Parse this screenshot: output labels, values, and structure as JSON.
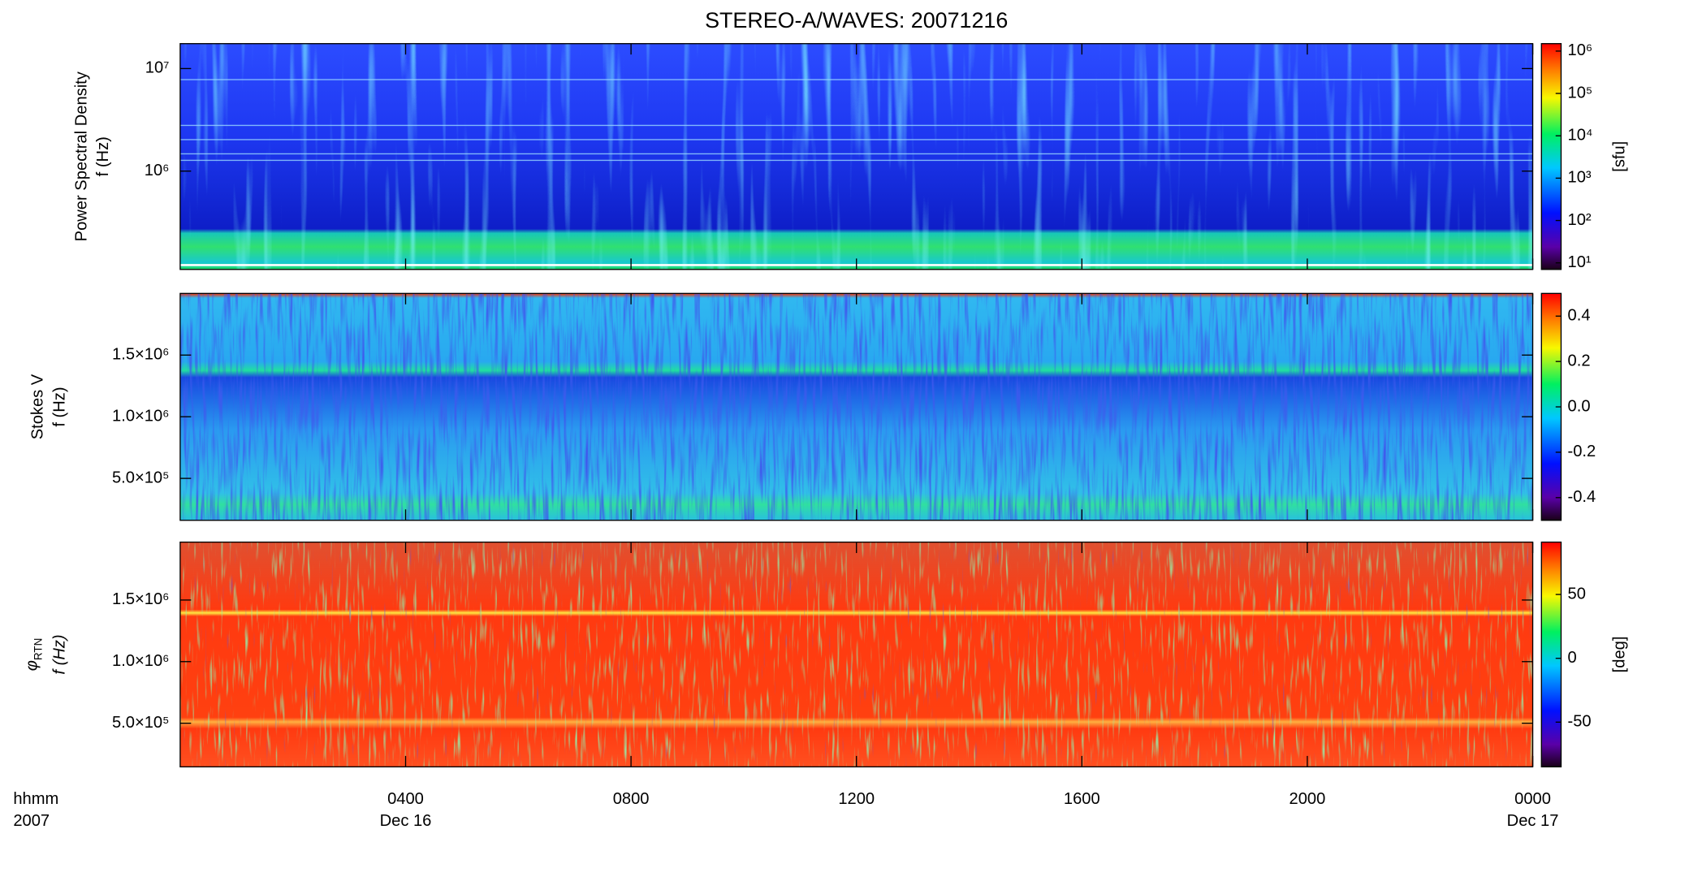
{
  "chart_data": [
    {
      "type": "spectrogram",
      "title": "STEREO-A/WAVES: 20071216",
      "ylabel": [
        "Power Spectral Density",
        "f (Hz)"
      ],
      "ylog": true,
      "ylim": [
        110000,
        17500000
      ],
      "yticks": [
        {
          "value": 1000000,
          "label": "10⁶"
        },
        {
          "value": 10000000,
          "label": "10⁷"
        }
      ],
      "clog": true,
      "clim": [
        7,
        1500000
      ],
      "cticks": [
        {
          "value": 10,
          "label": "10¹"
        },
        {
          "value": 100,
          "label": "10²"
        },
        {
          "value": 1000,
          "label": "10³"
        },
        {
          "value": 10000,
          "label": "10⁴"
        },
        {
          "value": 100000,
          "label": "10⁵"
        },
        {
          "value": 1000000,
          "label": "10⁶"
        }
      ],
      "clabel": "[sfu]"
    },
    {
      "type": "spectrogram",
      "ylabel": [
        "Stokes V",
        "f (Hz)"
      ],
      "ylog": false,
      "ylim": [
        160000,
        2000000
      ],
      "yticks": [
        {
          "value": 500000,
          "label": "5.0×10⁵"
        },
        {
          "value": 1000000,
          "label": "1.0×10⁶"
        },
        {
          "value": 1500000,
          "label": "1.5×10⁶"
        }
      ],
      "clog": false,
      "clim": [
        -0.5,
        0.5
      ],
      "cticks": [
        -0.4,
        -0.2,
        {
          "value": 0,
          "label": "0.0"
        },
        0.2,
        0.4
      ]
    },
    {
      "type": "spectrogram",
      "ylabel_symbol": "φ",
      "ylabel_subscript": "RTN",
      "ylabel": [
        "f (Hz)"
      ],
      "ylog": false,
      "ylim": [
        146000,
        1970000
      ],
      "yticks": [
        {
          "value": 500000,
          "label": "5.0×10⁵"
        },
        {
          "value": 1000000,
          "label": "1.0×10⁶"
        },
        {
          "value": 1500000,
          "label": "1.5×10⁶"
        }
      ],
      "clog": false,
      "clim": [
        -85,
        91
      ],
      "cticks": [
        -50,
        0,
        50
      ],
      "clabel": "[deg]",
      "xlim": [
        0,
        24
      ],
      "xticks": [
        {
          "value": 4,
          "label": "0400"
        },
        {
          "value": 8,
          "label": "0800"
        },
        {
          "value": 12,
          "label": "1200"
        },
        {
          "value": 16,
          "label": "1600"
        },
        {
          "value": 20,
          "label": "2000"
        },
        {
          "value": 24,
          "label": "0000"
        }
      ],
      "x_sublabels": [
        {
          "value": 4,
          "label": "Dec 16"
        },
        {
          "value": 24,
          "label": "Dec 17"
        }
      ],
      "xlabel": [
        "hhmm",
        "2007"
      ]
    }
  ]
}
